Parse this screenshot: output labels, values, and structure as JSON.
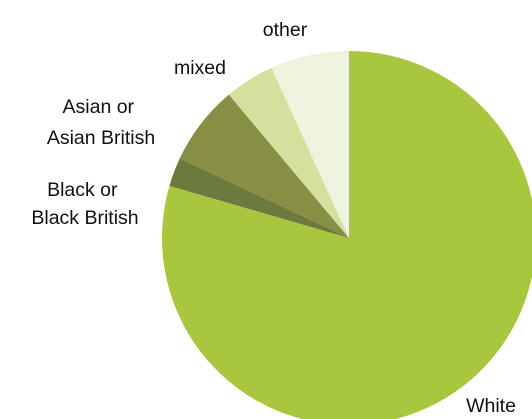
{
  "chart_data": {
    "type": "pie",
    "title": "",
    "slices": [
      {
        "label": "White",
        "value": 79.5,
        "color": "#a9c63f",
        "label_lines": [
          "White"
        ]
      },
      {
        "label": "Black or Black British",
        "value": 2.5,
        "color": "#6d7a3d",
        "label_lines": [
          "Black or",
          "Black British"
        ]
      },
      {
        "label": "Asian or Asian British",
        "value": 6.9,
        "color": "#878f45",
        "label_lines": [
          "Asian or",
          "Asian British"
        ]
      },
      {
        "label": "mixed",
        "value": 4.3,
        "color": "#d3e09e",
        "label_lines": [
          "mixed"
        ]
      },
      {
        "label": "other",
        "value": 6.8,
        "color": "#eef3de",
        "label_lines": [
          "other"
        ]
      }
    ],
    "start_angle_deg": 0,
    "direction": "clockwise",
    "legend": "none",
    "labels": "outside"
  }
}
